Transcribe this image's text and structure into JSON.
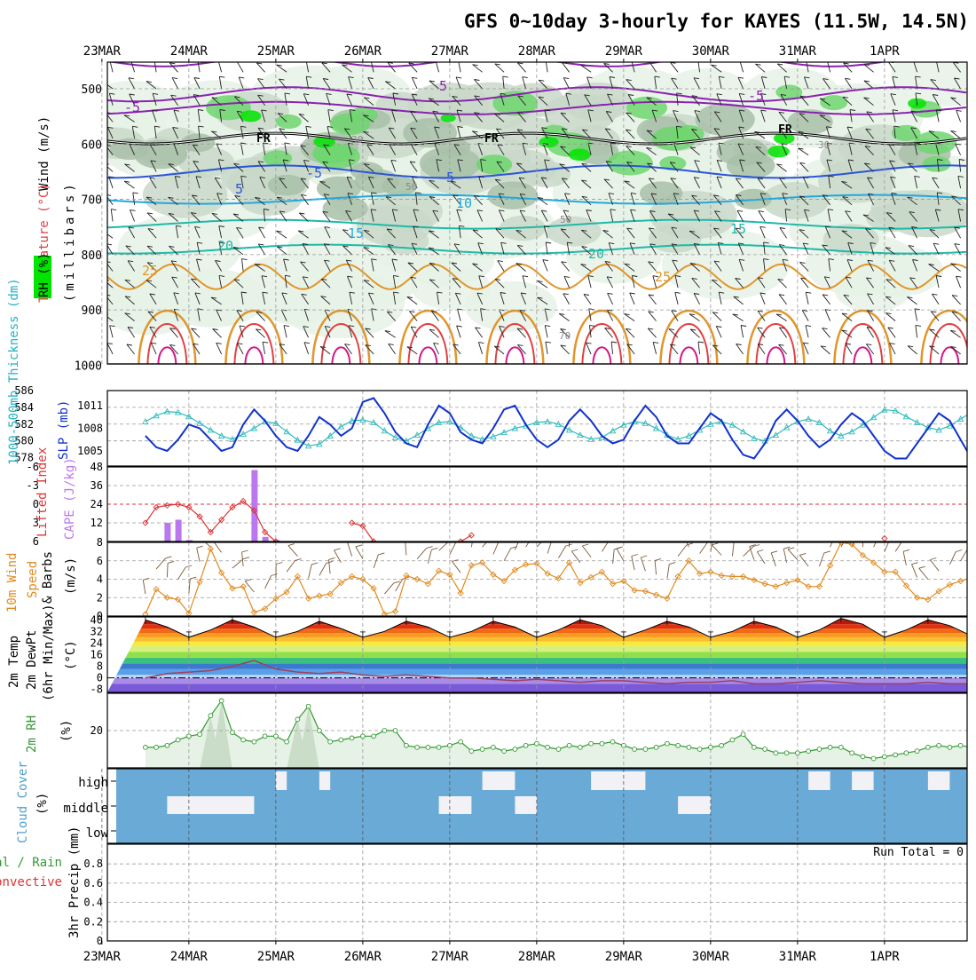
{
  "title": "GFS 0~10day 3-hourly for KAYES (11.5W, 14.5N)",
  "dates": [
    "23MAR",
    "24MAR",
    "25MAR",
    "26MAR",
    "27MAR",
    "28MAR",
    "29MAR",
    "30MAR",
    "31MAR",
    "1APR"
  ],
  "colors": {
    "rh_light": "#e8f2e8",
    "rh_mid": "#c9d8c9",
    "rh_dark": "#a8bfa8",
    "rh_green": "#6fd66f",
    "rh_bright": "#00e400",
    "thickness": "#33bbbb",
    "slp": "#1133cc",
    "lifted": "#dd3333",
    "cape": "#bb77ee",
    "wind": "#e08a20",
    "barb": "#7a5a3a",
    "rh2m": "#339933",
    "cloud": "#6aaad6",
    "cloud_gap": "#f2f2f6",
    "contour_purple": "#8a22b0",
    "contour_blue": "#2a55d8",
    "contour_cyan": "#22a8e0",
    "contour_teal": "#1fb8a8",
    "contour_orange": "#e0962a",
    "contour_red": "#e04040",
    "contour_mag": "#d01a8a"
  },
  "panels": {
    "upper": {
      "ylabel_wind": "Wind (m/s)",
      "ylabel_temp": "Temperature (°C)",
      "ylabel_rh": "RH (%)",
      "ylabel_mb": "(millibars)",
      "yticks": [
        "500",
        "600",
        "700",
        "800",
        "900",
        "1000"
      ],
      "freezing_label": "FR",
      "contour_labels": [
        "-5",
        "-5",
        "-5",
        "5",
        "5",
        "5",
        "10",
        "15",
        "15",
        "20",
        "20",
        "25",
        "25",
        "30",
        "30",
        "50",
        "50",
        "70"
      ]
    },
    "thick": {
      "ylabel_left": "1000-500mb Thickness (dm)",
      "ylabel_right": "SLP (mb)",
      "yticks_left": [
        "586",
        "584",
        "582",
        "580",
        "578"
      ],
      "yticks_right": [
        "1011",
        "1008",
        "1005"
      ]
    },
    "cape": {
      "ylabel_left": "Lifted Index",
      "ylabel_right": "CAPE (J/kg)",
      "yticks_left": [
        "-6",
        "-3",
        "0",
        "3",
        "6"
      ],
      "yticks_right": [
        "48",
        "36",
        "24",
        "12"
      ]
    },
    "wind": {
      "ylabel_a": "10m Wind",
      "ylabel_b": "Speed",
      "ylabel_c": "& Barbs",
      "ylabel_d": "(m/s)",
      "yticks": [
        "8",
        "6",
        "4",
        "2",
        "0"
      ]
    },
    "temp": {
      "ylabel_a": "2m Temp",
      "ylabel_b": "2m DewPt",
      "ylabel_c": "(6hr Min/Max)",
      "ylabel_d": "(°C)",
      "yticks": [
        "40",
        "32",
        "24",
        "16",
        "8",
        "0",
        "-8"
      ]
    },
    "rh": {
      "ylabel_a": "2m RH",
      "ylabel_b": "(%)",
      "yticks": [
        "20"
      ]
    },
    "cloud": {
      "ylabel_a": "Cloud Cover",
      "ylabel_b": "(%)",
      "levels": [
        "high",
        "middle",
        "low"
      ]
    },
    "precip": {
      "ylabel_a": "Total / Rain",
      "ylabel_b": "Convective",
      "ylabel_c": "3hr Precip (mm)",
      "yticks": [
        "0.8",
        "0.6",
        "0.4",
        "0.2",
        "0"
      ],
      "run_total": "Run Total = 0"
    }
  },
  "chart_data": [
    {
      "type": "line",
      "title": "1000-500mb Thickness (dm) / SLP (mb)",
      "x_unit": "hours since 22MAR 12Z",
      "x": [
        0,
        3,
        6,
        9,
        12,
        15,
        18,
        21,
        24,
        27,
        30,
        33,
        36,
        39,
        42,
        45,
        48,
        51,
        54,
        57,
        60,
        63,
        66,
        69,
        72,
        75,
        78,
        81,
        84,
        87,
        90,
        93,
        96,
        99,
        102,
        105,
        108,
        111,
        114,
        117,
        120,
        123,
        126,
        129,
        132,
        135,
        138,
        141,
        144,
        147,
        150,
        153,
        156,
        159,
        162,
        165,
        168,
        171,
        174,
        177,
        180,
        183,
        186,
        189,
        192,
        195,
        198,
        201,
        204,
        207,
        210,
        213,
        216,
        219,
        222,
        225,
        228,
        231,
        234,
        237,
        240
      ],
      "series": [
        {
          "name": "Thickness (dm)",
          "axis": "left",
          "ylim": [
            577,
            586
          ],
          "values": [
            582.3,
            583.0,
            583.5,
            583.4,
            582.9,
            582.1,
            581.3,
            580.6,
            580.2,
            580.8,
            581.5,
            582.3,
            582.1,
            581.1,
            580.1,
            579.4,
            579.6,
            580.6,
            581.7,
            582.4,
            582.5,
            582.2,
            581.2,
            580.4,
            580.0,
            580.7,
            581.5,
            582.2,
            582.3,
            581.6,
            580.6,
            580.2,
            580.5,
            581.0,
            581.5,
            581.8,
            582.2,
            582.3,
            582.0,
            581.3,
            580.7,
            580.2,
            580.4,
            581.2,
            581.9,
            582.3,
            582.1,
            581.5,
            580.7,
            580.2,
            580.6,
            581.3,
            582.0,
            582.3,
            581.9,
            581.1,
            580.3,
            580.0,
            580.7,
            581.6,
            582.3,
            582.6,
            582.2,
            581.2,
            580.6,
            581.1,
            581.9,
            582.8,
            583.7,
            583.6,
            582.9,
            582.2,
            581.6,
            581.3,
            581.8,
            582.6,
            583.4,
            584.1,
            583.9,
            583.0,
            582.2
          ]
        },
        {
          "name": "SLP (mb)",
          "axis": "right",
          "ylim": [
            1003,
            1013
          ],
          "values": [
            1007.0,
            1005.5,
            1005.0,
            1006.5,
            1008.5,
            1008.0,
            1006.5,
            1005.0,
            1005.5,
            1008.5,
            1010.5,
            1009.0,
            1007.0,
            1005.5,
            1005.0,
            1007.0,
            1009.5,
            1008.5,
            1007.0,
            1008.0,
            1011.5,
            1012.0,
            1010.0,
            1007.5,
            1006.0,
            1005.5,
            1008.5,
            1011.0,
            1010.0,
            1007.5,
            1006.5,
            1006.0,
            1008.0,
            1010.5,
            1011.0,
            1008.5,
            1006.5,
            1005.5,
            1006.5,
            1009.0,
            1010.5,
            1009.0,
            1007.0,
            1006.0,
            1006.5,
            1009.0,
            1011.0,
            1009.5,
            1007.0,
            1006.0,
            1006.0,
            1008.0,
            1010.0,
            1009.0,
            1006.5,
            1004.5,
            1004.0,
            1006.0,
            1009.0,
            1010.5,
            1009.0,
            1007.0,
            1005.5,
            1006.5,
            1008.5,
            1010.0,
            1009.0,
            1007.0,
            1005.0,
            1004.0,
            1004.0,
            1006.0,
            1008.0,
            1010.0,
            1009.0,
            1006.5,
            1004.0,
            1004.5,
            1006.0,
            1005.5,
            1006.0
          ]
        }
      ]
    },
    {
      "type": "bar",
      "title": "Lifted Index / CAPE (J/kg)",
      "x_unit": "hours since 22MAR 12Z",
      "series": [
        {
          "name": "CAPE (J/kg)",
          "axis": "right",
          "ylim": [
            0,
            48
          ],
          "x": [
            6,
            9,
            12,
            15,
            30,
            33,
            36,
            39
          ],
          "values": [
            12,
            14,
            1,
            0,
            46,
            3,
            1,
            0
          ]
        },
        {
          "name": "Lifted Index",
          "axis": "left",
          "ylim": [
            6,
            -6
          ],
          "x": [
            0,
            3,
            6,
            9,
            12,
            15,
            18,
            21,
            24,
            27,
            30,
            33,
            36,
            57,
            60,
            63,
            87,
            90,
            204,
            237
          ],
          "values": [
            3.0,
            0.5,
            0.2,
            0.0,
            0.5,
            2.0,
            4.5,
            2.5,
            0.5,
            -0.5,
            1.0,
            4.5,
            6.0,
            3.0,
            3.5,
            6.0,
            6.0,
            5.0,
            5.5,
            6.0
          ]
        }
      ]
    },
    {
      "type": "line",
      "title": "10m Wind Speed & Barbs (m/s)",
      "ylim": [
        0,
        8
      ],
      "x_unit": "hours since 22MAR 12Z",
      "x": [
        0,
        3,
        6,
        9,
        12,
        15,
        18,
        21,
        24,
        27,
        30,
        33,
        36,
        39,
        42,
        45,
        48,
        51,
        54,
        57,
        60,
        63,
        66,
        69,
        72,
        75,
        78,
        81,
        84,
        87,
        90,
        93,
        96,
        99,
        102,
        105,
        108,
        111,
        114,
        117,
        120,
        123,
        126,
        129,
        132,
        135,
        138,
        141,
        144,
        147,
        150,
        153,
        156,
        159,
        162,
        165,
        168,
        171,
        174,
        177,
        180,
        183,
        186,
        189,
        192,
        195,
        198,
        201,
        204,
        207,
        210,
        213,
        216,
        219,
        222,
        225,
        228,
        231,
        234,
        237,
        240
      ],
      "values": [
        0.2,
        2.9,
        2.0,
        1.8,
        0.3,
        3.7,
        7.3,
        4.7,
        3.0,
        3.2,
        0.4,
        0.8,
        1.9,
        2.6,
        4.3,
        1.9,
        2.2,
        2.4,
        3.6,
        4.3,
        4.0,
        3.0,
        0.2,
        0.5,
        4.4,
        4.0,
        3.5,
        4.9,
        4.5,
        2.5,
        5.5,
        5.8,
        4.5,
        3.8,
        5.0,
        5.6,
        5.7,
        4.6,
        4.1,
        5.8,
        3.6,
        4.2,
        4.8,
        3.5,
        3.8,
        2.8,
        2.7,
        2.3,
        1.9,
        4.3,
        6.0,
        4.6,
        4.8,
        4.4,
        4.3,
        4.3,
        3.9,
        3.5,
        3.2,
        3.6,
        3.9,
        3.2,
        3.2,
        5.5,
        8.0,
        7.8,
        6.6,
        5.8,
        4.8,
        4.8,
        3.3,
        2.0,
        1.8,
        2.7,
        3.4,
        3.8,
        4.2,
        3.2,
        2.5,
        2.9,
        2.2
      ]
    },
    {
      "type": "line",
      "title": "2m Temp / 2m DewPt (°C)",
      "ylim": [
        -10,
        42
      ],
      "x_unit": "hours since 22MAR 12Z",
      "x": [
        0,
        6,
        12,
        18,
        24,
        30,
        36,
        42,
        48,
        54,
        60,
        66,
        72,
        78,
        84,
        90,
        96,
        102,
        108,
        114,
        120,
        126,
        132,
        138,
        144,
        150,
        156,
        162,
        168,
        174,
        180,
        186,
        192,
        198,
        204,
        210,
        216,
        222,
        228,
        234,
        240
      ],
      "series": [
        {
          "name": "2m Temp",
          "values": [
            40,
            35,
            28,
            33,
            40,
            35,
            28,
            32,
            39,
            34,
            28,
            32,
            39,
            35,
            28,
            32,
            39,
            35,
            28,
            33,
            40,
            36,
            28,
            33,
            39,
            35,
            28,
            32,
            39,
            35,
            28,
            33,
            41,
            37,
            28,
            33,
            40,
            36,
            29,
            31,
            30
          ]
        },
        {
          "name": "2m DewPt",
          "values": [
            0,
            3,
            4,
            5,
            8,
            12,
            6,
            4,
            3,
            4,
            2,
            1,
            2,
            1,
            0,
            0,
            -1,
            -2,
            -1,
            -2,
            -3,
            -2,
            -2,
            -3,
            -4,
            -3,
            -3,
            -2,
            -4,
            -4,
            -3,
            -2,
            -3,
            -4,
            -4,
            -4,
            -3,
            -4,
            -4,
            -4,
            -4
          ]
        }
      ]
    },
    {
      "type": "area",
      "title": "2m RH (%)",
      "ylim": [
        0,
        40
      ],
      "x_unit": "hours since 22MAR 12Z",
      "x": [
        0,
        3,
        6,
        9,
        12,
        15,
        18,
        21,
        24,
        27,
        30,
        33,
        36,
        39,
        42,
        45,
        48,
        51,
        54,
        57,
        60,
        63,
        66,
        69,
        72,
        75,
        78,
        81,
        84,
        87,
        90,
        93,
        96,
        99,
        102,
        105,
        108,
        111,
        114,
        117,
        120,
        123,
        126,
        129,
        132,
        135,
        138,
        141,
        144,
        147,
        150,
        153,
        156,
        159,
        162,
        165,
        168,
        171,
        174,
        177,
        180,
        183,
        186,
        189,
        192,
        195,
        198,
        201,
        204,
        207,
        210,
        213,
        216,
        219,
        222,
        225,
        228,
        231,
        234,
        237,
        240
      ],
      "values": [
        11,
        11,
        12,
        15,
        17,
        18,
        28,
        36,
        19,
        15,
        14,
        17,
        17,
        14,
        26,
        33,
        20,
        14,
        15,
        16,
        17,
        17,
        20,
        20,
        12,
        11,
        11,
        11,
        12,
        14,
        9,
        10,
        11,
        9,
        10,
        12,
        13,
        11,
        10,
        12,
        11,
        13,
        13,
        14,
        12,
        10,
        10,
        11,
        13,
        12,
        11,
        10,
        11,
        12,
        15,
        18,
        11,
        10,
        8,
        8,
        8,
        9,
        10,
        11,
        11,
        8,
        6,
        5,
        6,
        7,
        8,
        9,
        11,
        12,
        11,
        12,
        11,
        10,
        9,
        11,
        13
      ]
    },
    {
      "type": "heatmap",
      "title": "Cloud Cover (%)",
      "rows": [
        "high",
        "middle",
        "low"
      ],
      "x_unit": "hours since 22MAR 12Z",
      "clear_periods": {
        "high": [
          [
            36,
            39
          ],
          [
            48,
            51
          ],
          [
            93,
            102
          ],
          [
            123,
            138
          ],
          [
            183,
            189
          ],
          [
            195,
            201
          ],
          [
            216,
            222
          ]
        ],
        "middle": [
          [
            6,
            30
          ],
          [
            81,
            90
          ],
          [
            102,
            108
          ],
          [
            147,
            156
          ],
          [
            234,
            240
          ]
        ],
        "low": []
      }
    },
    {
      "type": "line",
      "title": "3hr Precip (mm)",
      "ylim": [
        0,
        1
      ],
      "series": [
        {
          "name": "Total / Rain",
          "values": []
        },
        {
          "name": "Convective",
          "values": []
        }
      ]
    }
  ]
}
